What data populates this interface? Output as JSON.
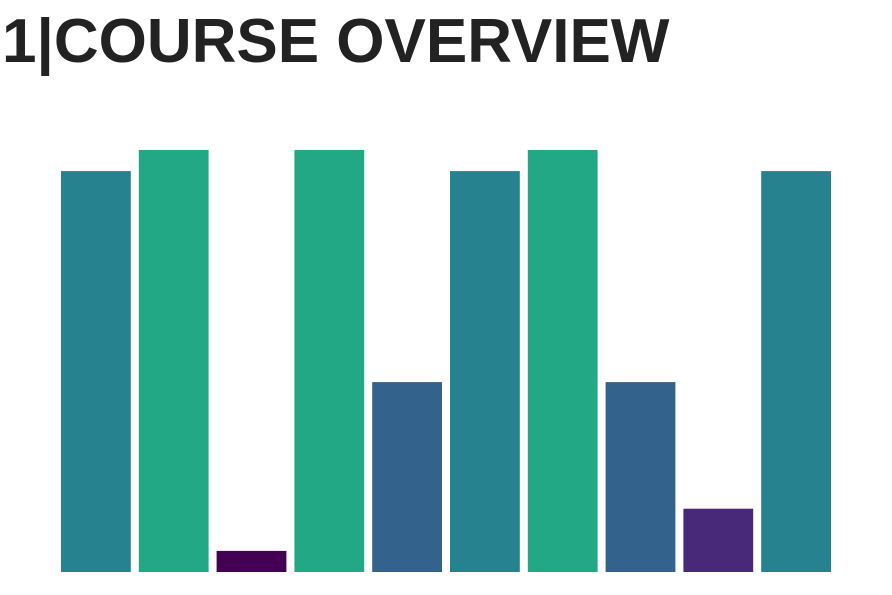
{
  "page": {
    "title": "1|COURSE OVERVIEW"
  },
  "chart_data": {
    "type": "bar",
    "title": "",
    "xlabel": "",
    "ylabel": "",
    "categories": [
      "",
      "",
      "",
      "",
      "",
      "",
      "",
      "",
      "",
      ""
    ],
    "values": [
      19,
      20,
      1,
      20,
      9,
      19,
      20,
      9,
      3,
      19
    ],
    "colors": [
      "#26828e",
      "#22a884",
      "#440154",
      "#22a884",
      "#33638d",
      "#26828e",
      "#22a884",
      "#33638d",
      "#482878",
      "#26828e"
    ],
    "ylim": [
      0,
      20
    ],
    "grid": false,
    "legend": "none"
  }
}
